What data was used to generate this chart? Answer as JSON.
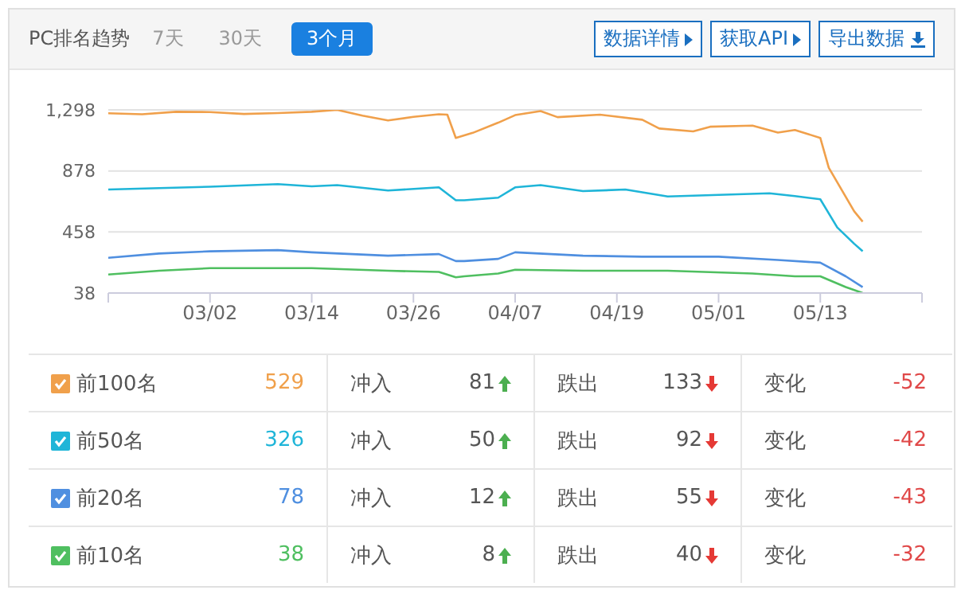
{
  "chart_data": {
    "type": "line",
    "title": "PC排名趋势",
    "xlim": [
      "--02-18",
      "--05-25"
    ],
    "xticks": [
      {
        "value": "--02-18",
        "label": null
      },
      {
        "value": "--03-02",
        "label": "03/02"
      },
      {
        "value": "--03-14",
        "label": "03/14"
      },
      {
        "value": "--03-26",
        "label": "03/26"
      },
      {
        "value": "--04-07",
        "label": "04/07"
      },
      {
        "value": "--04-19",
        "label": "04/19"
      },
      {
        "value": "--05-01",
        "label": "05/01"
      },
      {
        "value": "--05-13",
        "label": "05/13"
      },
      {
        "value": "--05-25",
        "label": null
      }
    ],
    "ylim": [
      38,
      1298
    ],
    "yticks": [
      38,
      458,
      878,
      {
        "value": 1298,
        "label": "1,298"
      }
    ],
    "grid": "y",
    "legend": "bottom",
    "marker": "none",
    "line_style": "solid",
    "series": [
      {
        "name": "前100名",
        "color": "#f0a04b",
        "x": [
          "--02-18",
          "--02-22",
          "--02-26",
          "--03-02",
          "--03-06",
          "--03-10",
          "--03-14",
          "--03-17",
          "--03-20",
          "--03-23",
          "--03-26",
          "--03-29",
          "--03-30",
          "--03-31",
          "--04-02",
          "--04-05",
          "--04-07",
          "--04-10",
          "--04-12",
          "--04-17",
          "--04-22",
          "--04-24",
          "--04-28",
          "--04-30",
          "--05-05",
          "--05-08",
          "--05-10",
          "--05-13",
          "--05-14",
          "--05-17",
          "--05-18"
        ],
        "values": [
          1275,
          1268,
          1285,
          1283,
          1270,
          1276,
          1285,
          1298,
          1258,
          1225,
          1250,
          1268,
          1265,
          1105,
          1140,
          1210,
          1262,
          1290,
          1248,
          1265,
          1230,
          1170,
          1150,
          1182,
          1190,
          1142,
          1160,
          1105,
          900,
          600,
          529
        ]
      },
      {
        "name": "前50名",
        "color": "#1fb5d8",
        "x": [
          "--02-18",
          "--02-24",
          "--03-02",
          "--03-10",
          "--03-14",
          "--03-17",
          "--03-23",
          "--03-29",
          "--03-31",
          "--04-01",
          "--04-05",
          "--04-07",
          "--04-10",
          "--04-15",
          "--04-20",
          "--04-25",
          "--05-01",
          "--05-07",
          "--05-10",
          "--05-13",
          "--05-15",
          "--05-17",
          "--05-18"
        ],
        "values": [
          750,
          760,
          769,
          787,
          772,
          780,
          743,
          765,
          676,
          676,
          694,
          765,
          780,
          739,
          750,
          702,
          713,
          724,
          705,
          683,
          489,
          377,
          326
        ]
      },
      {
        "name": "前20名",
        "color": "#4f8fe0",
        "x": [
          "--02-18",
          "--02-24",
          "--03-02",
          "--03-10",
          "--03-14",
          "--03-23",
          "--03-29",
          "--03-31",
          "--04-01",
          "--04-05",
          "--04-07",
          "--04-15",
          "--04-22",
          "--05-01",
          "--05-08",
          "--05-13",
          "--05-16",
          "--05-18"
        ],
        "values": [
          280,
          310,
          325,
          333,
          318,
          295,
          306,
          258,
          258,
          273,
          318,
          295,
          288,
          288,
          265,
          247,
          153,
          78
        ]
      },
      {
        "name": "前10名",
        "color": "#4fbf60",
        "x": [
          "--02-18",
          "--02-24",
          "--03-02",
          "--03-14",
          "--03-23",
          "--03-29",
          "--03-31",
          "--04-01",
          "--04-05",
          "--04-07",
          "--04-15",
          "--04-25",
          "--05-05",
          "--05-10",
          "--05-13",
          "--05-16",
          "--05-18"
        ],
        "values": [
          165,
          191,
          209,
          209,
          191,
          183,
          146,
          153,
          172,
          198,
          191,
          191,
          172,
          153,
          153,
          79,
          38
        ]
      }
    ],
    "annotations": [
      "7天",
      "30天",
      "3个月",
      "数据详情",
      "获取API",
      "导出数据",
      "529",
      "冲入",
      "81",
      "跌出",
      "133",
      "变化",
      "-52",
      "326",
      "冲入",
      "50",
      "跌出",
      "92",
      "变化",
      "-42",
      "78",
      "冲入",
      "12",
      "跌出",
      "55",
      "变化",
      "-43",
      "38",
      "冲入",
      "8",
      "跌出",
      "40",
      "变化",
      "-32"
    ]
  }
}
